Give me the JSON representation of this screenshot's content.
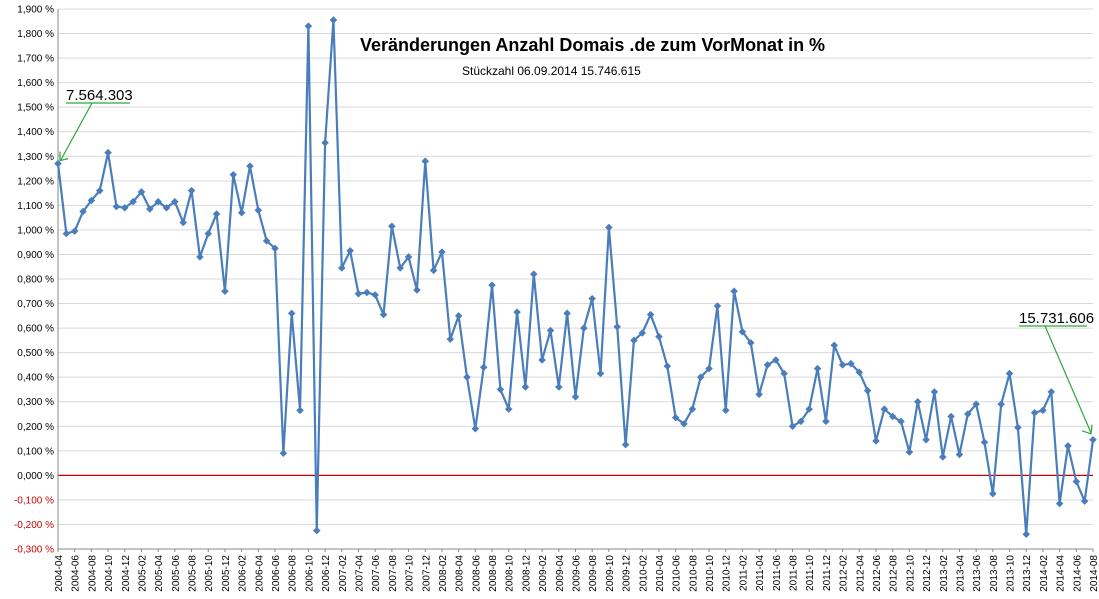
{
  "chart_data": {
    "type": "line",
    "title": "Veränderungen Anzahl Domais .de zum VorMonat in %",
    "subtitle": "Stückzahl 06.09.2014  15.746.615",
    "ylim": [
      -0.3,
      1.9
    ],
    "y_ticks": [
      "-0,300 %",
      "-0,200 %",
      "-0,100 %",
      "0,000 %",
      "0,100 %",
      "0,200 %",
      "0,300 %",
      "0,400 %",
      "0,500 %",
      "0,600 %",
      "0,700 %",
      "0,800 %",
      "0,900 %",
      "1,000 %",
      "1,100 %",
      "1,200 %",
      "1,300 %",
      "1,400 %",
      "1,500 %",
      "1,600 %",
      "1,700 %",
      "1,800 %",
      "1,900 %"
    ],
    "x_labels": [
      "2004-04",
      "2004-06",
      "2004-08",
      "2004-10",
      "2004-12",
      "2005-02",
      "2005-04",
      "2005-06",
      "2005-08",
      "2005-10",
      "2005-12",
      "2006-02",
      "2006-04",
      "2006-06",
      "2006-08",
      "2006-10",
      "2006-12",
      "2007-02",
      "2007-04",
      "2007-06",
      "2007-08",
      "2007-10",
      "2007-12",
      "2008-02",
      "2008-04",
      "2008-06",
      "2008-08",
      "2008-10",
      "2008-12",
      "2009-02",
      "2009-04",
      "2009-06",
      "2009-08",
      "2009-10",
      "2009-12",
      "2010-02",
      "2010-04",
      "2010-06",
      "2010-08",
      "2010-10",
      "2010-12",
      "2011-02",
      "2011-04",
      "2011-06",
      "2011-08",
      "2011-10",
      "2011-12",
      "2012-02",
      "2012-04",
      "2012-06",
      "2012-08",
      "2012-10",
      "2012-12",
      "2013-02",
      "2013-04",
      "2013-06",
      "2013-08",
      "2013-10",
      "2013-12",
      "2014-02",
      "2014-04",
      "2014-06",
      "2014-08"
    ],
    "grid": true,
    "series": [
      {
        "color": "#4a7ebb",
        "values": [
          1.27,
          0.985,
          0.995,
          1.075,
          1.12,
          1.16,
          1.315,
          1.095,
          1.09,
          1.115,
          1.155,
          1.085,
          1.115,
          1.09,
          1.115,
          1.03,
          1.16,
          0.89,
          0.985,
          1.065,
          0.75,
          1.225,
          1.07,
          1.26,
          1.08,
          0.955,
          0.925,
          0.09,
          0.66,
          0.265,
          1.83,
          -0.225,
          1.355,
          1.855,
          0.845,
          0.915,
          0.74,
          0.745,
          0.735,
          0.655,
          1.015,
          0.845,
          0.89,
          0.755,
          1.28,
          0.835,
          0.91,
          0.555,
          0.65,
          0.4,
          0.19,
          0.44,
          0.775,
          0.35,
          0.27,
          0.665,
          0.36,
          0.82,
          0.47,
          0.59,
          0.36,
          0.66,
          0.32,
          0.6,
          0.72,
          0.415,
          1.01,
          0.605,
          0.125,
          0.55,
          0.58,
          0.655,
          0.565,
          0.445,
          0.235,
          0.21,
          0.27,
          0.4,
          0.435,
          0.69,
          0.265,
          0.75,
          0.585,
          0.54,
          0.33,
          0.45,
          0.47,
          0.415,
          0.2,
          0.22,
          0.27,
          0.435,
          0.22,
          0.53,
          0.45,
          0.455,
          0.42,
          0.345,
          0.14,
          0.27,
          0.24,
          0.22,
          0.095,
          0.3,
          0.145,
          0.34,
          0.075,
          0.24,
          0.085,
          0.25,
          0.29,
          0.135,
          -0.075,
          0.29,
          0.415,
          0.195,
          -0.24,
          0.255,
          0.265,
          0.34,
          -0.115,
          0.12,
          -0.025,
          -0.105,
          0.145
        ]
      }
    ],
    "zero_line_color": "#cc0000",
    "annotations": [
      {
        "text": "7.564.303",
        "points_to_index": 0
      },
      {
        "text": "15.731.606",
        "points_to_index": 124
      }
    ]
  }
}
